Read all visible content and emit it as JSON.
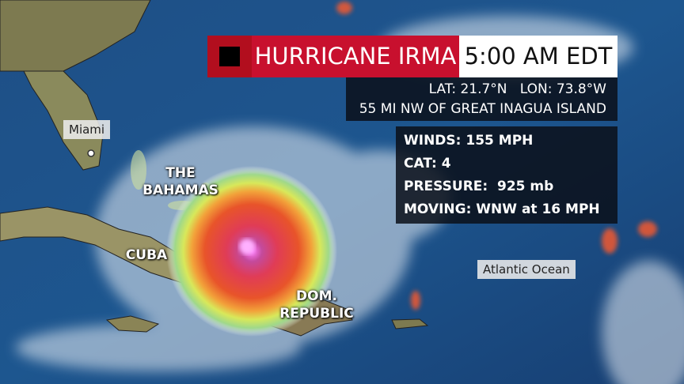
{
  "header": {
    "title": "HURRICANE IRMA",
    "time": "5:00 AM EDT"
  },
  "location": {
    "lat": "LAT: 21.7°N",
    "lon": "LON: 73.8°W",
    "reference": "55 MI NW OF GREAT INAGUA ISLAND"
  },
  "stats": [
    "WINDS: 155 MPH",
    "CAT: 4",
    "PRESSURE:  925 mb",
    "MOVING: WNW at 16 MPH"
  ],
  "map_labels": {
    "miami": "Miami",
    "bahamas": [
      "THE",
      "BAHAMAS"
    ],
    "cuba": "CUBA",
    "dom_republic": [
      "DOM.",
      "REPUBLIC"
    ],
    "ocean": "Atlantic Ocean"
  }
}
